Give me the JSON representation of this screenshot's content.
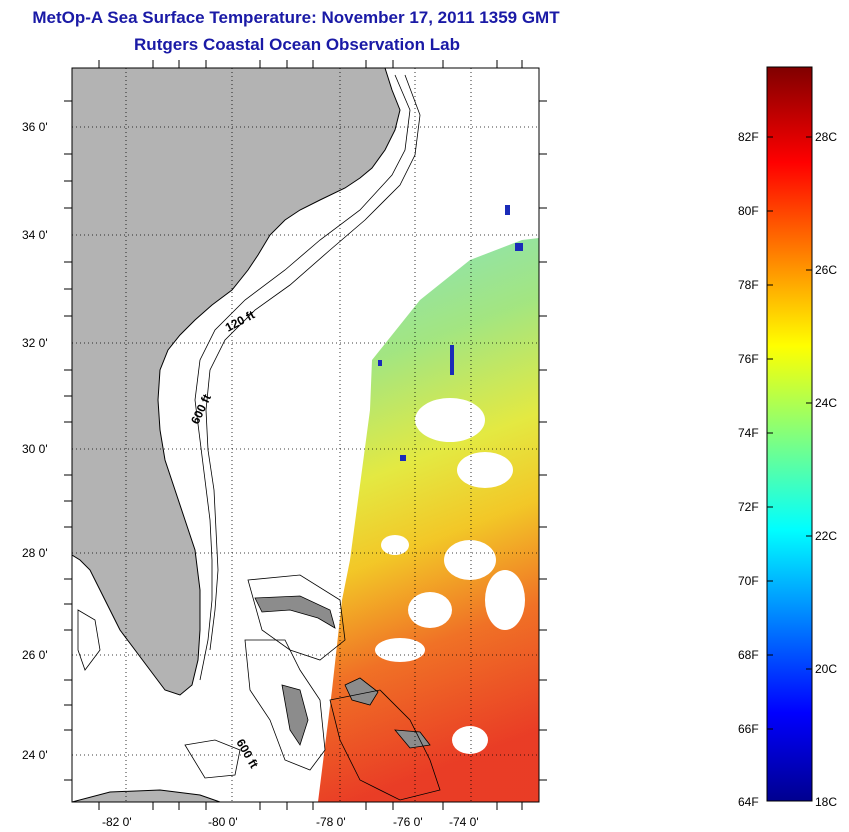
{
  "title": "MetOp-A Sea Surface Temperature:  November 17, 2011 1359 GMT",
  "subtitle": "Rutgers Coastal Ocean Observation Lab",
  "map": {
    "lon_ticks": [
      "-82 0'",
      "-80 0'",
      "-78 0'",
      "-76 0'",
      "-74 0'"
    ],
    "lat_ticks": [
      "36 0'",
      "34 0'",
      "32 0'",
      "30 0'",
      "28 0'",
      "26 0'",
      "24 0'"
    ],
    "contour_labels": [
      "120 ft",
      "600 ft",
      "600 ft"
    ],
    "colors": {
      "land": "#b3b3b3",
      "no_data": "#ffffff",
      "coast": "#000000"
    }
  },
  "colorbar": {
    "f_labels": [
      "82F",
      "80F",
      "78F",
      "76F",
      "74F",
      "72F",
      "70F",
      "68F",
      "66F",
      "64F"
    ],
    "c_labels": [
      "28C",
      "26C",
      "24C",
      "22C",
      "20C",
      "18C"
    ],
    "colormap": "jet",
    "min_label": "64F",
    "max_label": "18C"
  }
}
